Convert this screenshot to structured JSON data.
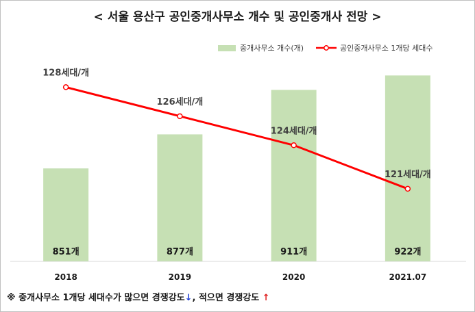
{
  "title": "< 서울 용산구 공인중개사무소 개수 및 공인중개사 전망 >",
  "legend": {
    "bar_label": "중개사무소 개수(개)",
    "line_label": "공인중개사무소 1개당 세대수"
  },
  "colors": {
    "bar": "#c6e0b4",
    "line": "#ff0000",
    "text": "#404040"
  },
  "chart_data": {
    "type": "bar",
    "categories": [
      "2018",
      "2019",
      "2020",
      "2021.07"
    ],
    "series": [
      {
        "name": "중개사무소 개수(개)",
        "type": "bar",
        "values": [
          851,
          877,
          911,
          922
        ],
        "labels": [
          "851개",
          "877개",
          "911개",
          "922개"
        ],
        "ylim": [
          780,
          930
        ]
      },
      {
        "name": "공인중개사무소 1개당 세대수",
        "type": "line",
        "values": [
          128,
          126,
          124,
          121
        ],
        "labels": [
          "128세대/개",
          "126세대/개",
          "124세대/개",
          "121세대/개"
        ],
        "ylim": [
          116,
          130
        ]
      }
    ],
    "legend": "top-right",
    "grid": false
  },
  "footnote": {
    "prefix": "※ 중개사무소 1개당 세대수가 많으면 경쟁강도",
    "down_arrow": "↓",
    "middle": ", 적으면 경쟁강도 ",
    "up_arrow": "↑"
  }
}
